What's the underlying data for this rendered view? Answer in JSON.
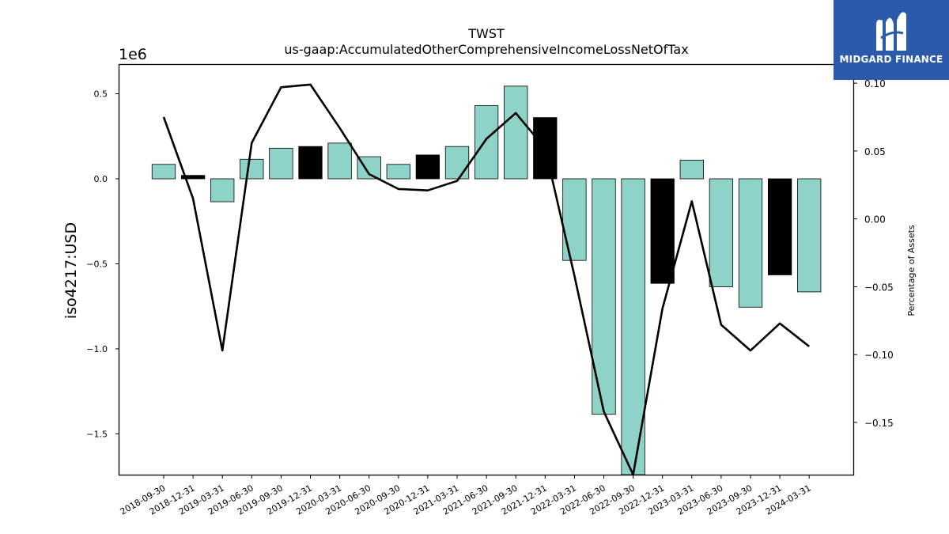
{
  "chart_data": {
    "type": "bar",
    "title": "TWST",
    "subtitle": "us-gaap:AccumulatedOtherComprehensiveIncomeLossNetOfTax",
    "ylabel": "iso4217:USD",
    "y2label": "Percentage of Assets",
    "y_scale_label": "1e6",
    "ylim": [
      -1.74,
      0.67
    ],
    "y2lim": [
      -0.1885,
      0.1135
    ],
    "y_ticks": [
      0.5,
      0.0,
      -0.5,
      -1.0,
      -1.5
    ],
    "y_tick_labels": [
      "0.5",
      "0.0",
      "−0.5",
      "−1.0",
      "−1.5"
    ],
    "y2_ticks": [
      0.1,
      0.05,
      0.0,
      -0.05,
      -0.1,
      -0.15
    ],
    "y2_tick_labels": [
      "0.10",
      "0.05",
      "0.00",
      "−0.05",
      "−0.10",
      "−0.15"
    ],
    "categories": [
      "2018-09-30",
      "2018-12-31",
      "2019-03-31",
      "2019-06-30",
      "2019-09-30",
      "2019-12-31",
      "2020-03-31",
      "2020-06-30",
      "2020-09-30",
      "2020-12-31",
      "2021-03-31",
      "2021-06-30",
      "2021-09-30",
      "2021-12-31",
      "2022-03-31",
      "2022-06-30",
      "2022-09-30",
      "2022-12-31",
      "2023-03-31",
      "2023-06-30",
      "2023-09-30",
      "2023-12-31",
      "2024-03-31"
    ],
    "values": [
      0.085,
      0.02,
      -0.135,
      0.115,
      0.18,
      0.19,
      0.21,
      0.13,
      0.085,
      0.14,
      0.19,
      0.43,
      0.545,
      0.36,
      -0.48,
      -1.385,
      -1.76,
      -0.615,
      0.11,
      -0.635,
      -0.755,
      -0.565,
      -0.665
    ],
    "bar_colors": [
      "#8dd3c7",
      "#000000",
      "#8dd3c7",
      "#8dd3c7",
      "#8dd3c7",
      "#000000",
      "#8dd3c7",
      "#8dd3c7",
      "#8dd3c7",
      "#000000",
      "#8dd3c7",
      "#8dd3c7",
      "#8dd3c7",
      "#000000",
      "#8dd3c7",
      "#8dd3c7",
      "#8dd3c7",
      "#000000",
      "#8dd3c7",
      "#8dd3c7",
      "#8dd3c7",
      "#000000",
      "#8dd3c7"
    ],
    "line_values": [
      0.075,
      0.015,
      -0.097,
      0.056,
      0.097,
      0.099,
      0.067,
      0.033,
      0.022,
      0.021,
      0.028,
      0.059,
      0.078,
      0.052,
      -0.042,
      -0.142,
      -0.19,
      -0.066,
      0.013,
      -0.078,
      -0.097,
      -0.077,
      -0.094
    ],
    "line_color": "#000000",
    "grid": false,
    "legend": "none"
  },
  "logo": {
    "text": "MIDGARD FINANCE",
    "background": "#2b5aab"
  }
}
